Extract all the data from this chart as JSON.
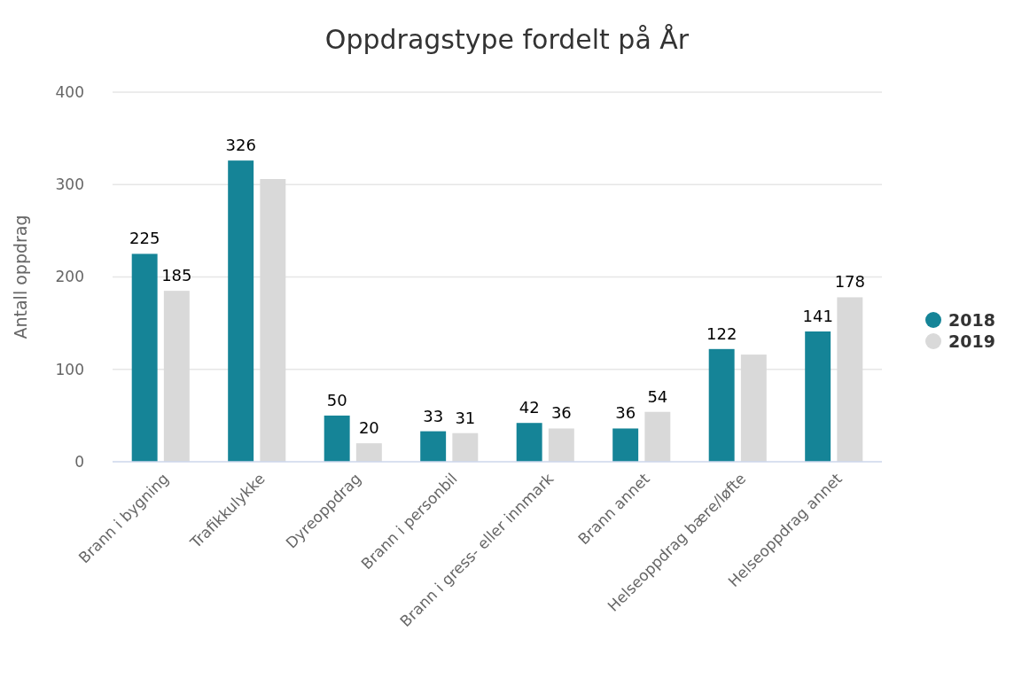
{
  "chart_data": {
    "type": "bar",
    "title": "Oppdragstype fordelt på År",
    "ylabel": "Antall oppdrag",
    "categories": [
      "Brann i bygning",
      "Trafikkulykke",
      "Dyreoppdrag",
      "Brann i personbil",
      "Brann i gress- eller innmark",
      "Brann annet",
      "Helseoppdrag bære/løfte",
      "Helseoppdrag annet"
    ],
    "series": [
      {
        "name": "2018",
        "color": "#158497",
        "values": [
          225,
          326,
          50,
          33,
          42,
          36,
          122,
          141
        ],
        "value_labels": [
          "225",
          "326",
          "50",
          "33",
          "42",
          "36",
          "122",
          "141"
        ]
      },
      {
        "name": "2019",
        "color": "#d9d9d9",
        "values": [
          185,
          306,
          20,
          31,
          36,
          54,
          116,
          178
        ],
        "value_labels": [
          "185",
          null,
          "20",
          "31",
          "36",
          "54",
          null,
          "178"
        ]
      }
    ],
    "ylim": [
      0,
      400
    ],
    "yticks": [
      0,
      100,
      200,
      300,
      400
    ],
    "grid": "y",
    "legend": "right"
  }
}
